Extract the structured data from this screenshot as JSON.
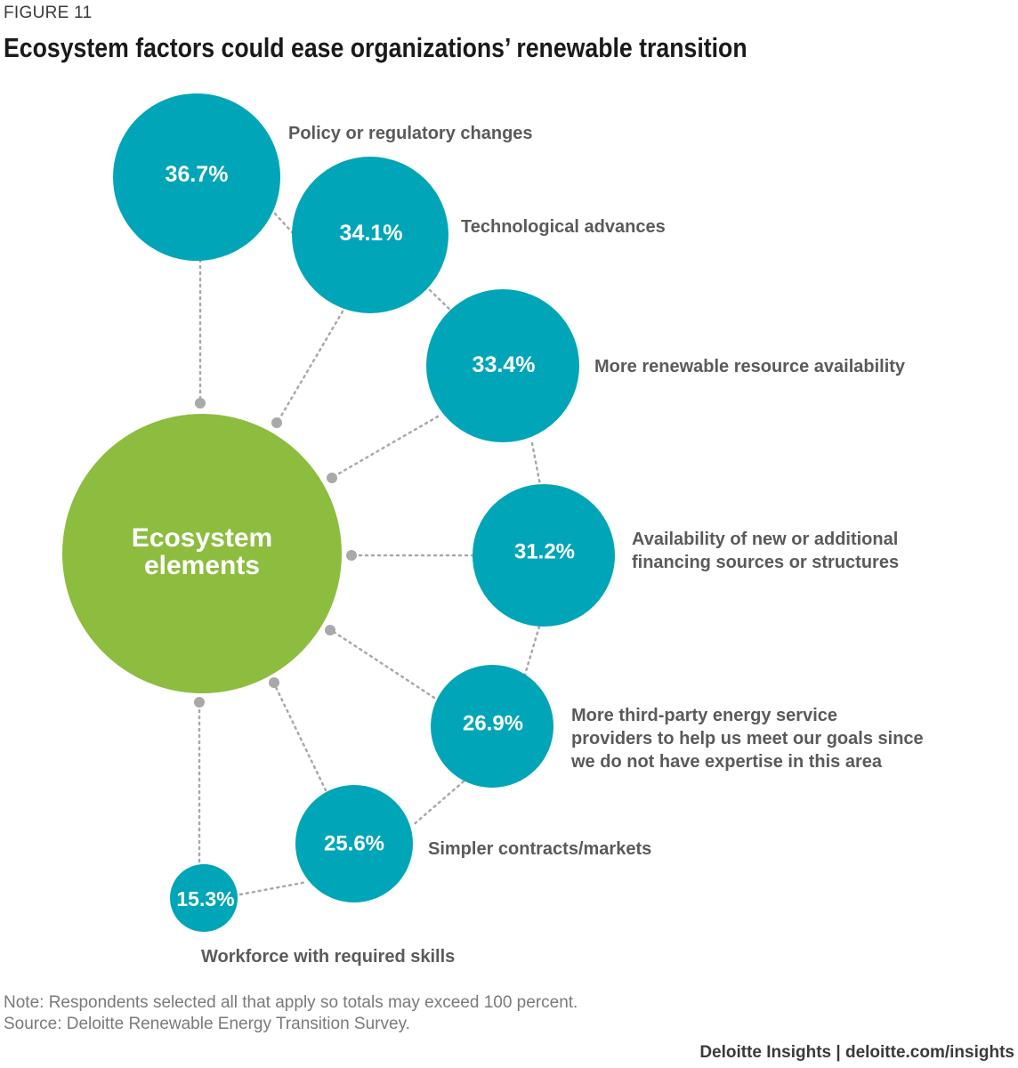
{
  "figure_label": "FIGURE 11",
  "title": "Ecosystem factors could ease organizations’ renewable transition",
  "hub": {
    "line1": "Ecosystem",
    "line2": "elements"
  },
  "factors": [
    {
      "value": "36.7%",
      "label": "Policy or regulatory changes"
    },
    {
      "value": "34.1%",
      "label": "Technological advances"
    },
    {
      "value": "33.4%",
      "label": "More renewable resource availability"
    },
    {
      "value": "31.2%",
      "label_lines": [
        "Availability of new or additional",
        "financing sources or structures"
      ]
    },
    {
      "value": "26.9%",
      "label_lines": [
        "More third-party energy service",
        "providers to help us meet our goals since",
        "we do not have expertise in this area"
      ]
    },
    {
      "value": "25.6%",
      "label": "Simpler contracts/markets"
    },
    {
      "value": "15.3%",
      "label": "Workforce with required skills"
    }
  ],
  "colors": {
    "hub": "#8cbd3f",
    "bubble": "#00a5b8",
    "connector": "#a9a9a9"
  },
  "note": "Note: Respondents selected all that apply so totals may exceed 100 percent.",
  "source": "Source: Deloitte Renewable Energy Transition Survey.",
  "brand": "Deloitte Insights | deloitte.com/insights"
}
